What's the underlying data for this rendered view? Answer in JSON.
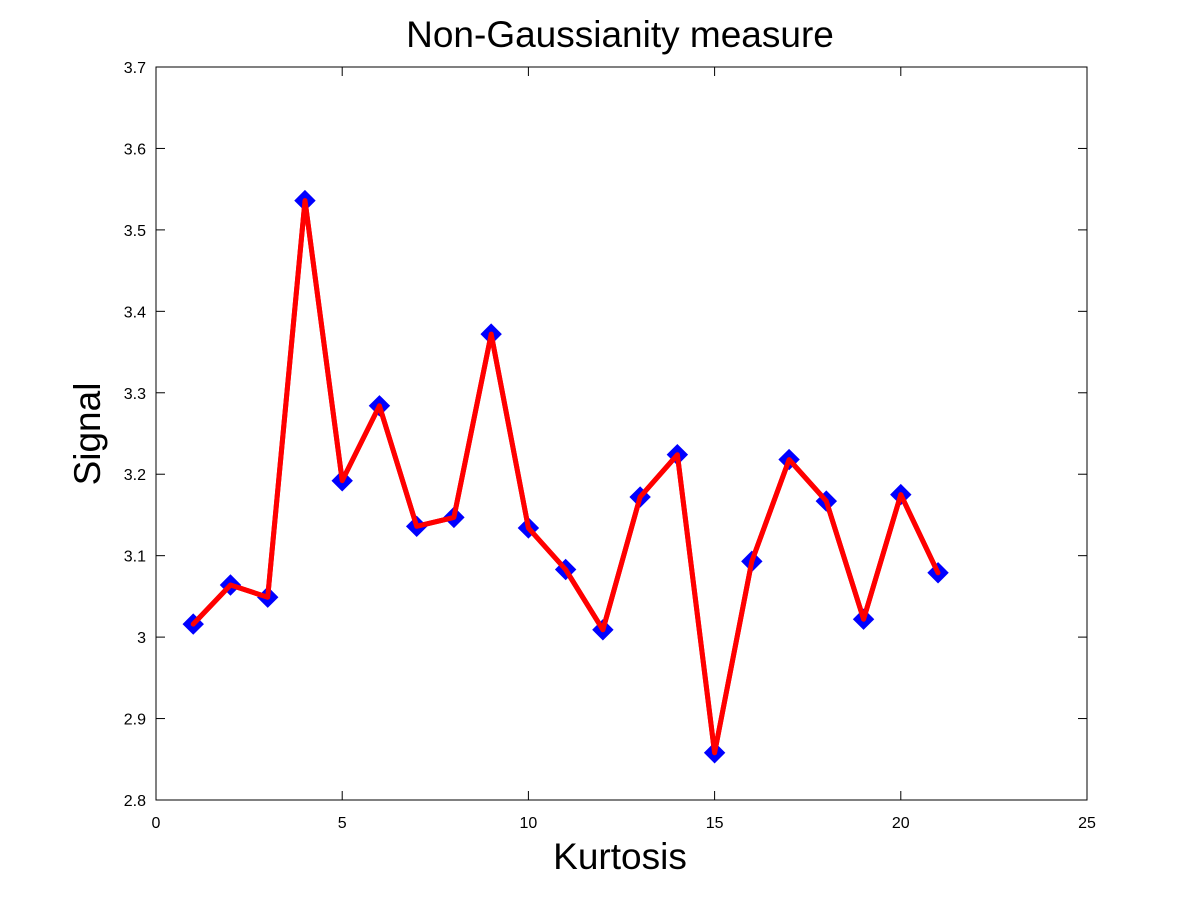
{
  "chart_data": {
    "type": "line",
    "title": "Non-Gaussianity measure",
    "xlabel": "Kurtosis",
    "ylabel": "Signal",
    "xlim": [
      0,
      25
    ],
    "ylim": [
      2.8,
      3.7
    ],
    "xticks": [
      0,
      5,
      10,
      15,
      20,
      25
    ],
    "yticks": [
      2.8,
      2.9,
      3,
      3.1,
      3.2,
      3.3,
      3.4,
      3.5,
      3.6,
      3.7
    ],
    "xtick_labels": [
      "0",
      "5",
      "10",
      "15",
      "20",
      "25"
    ],
    "ytick_labels": [
      "2.8",
      "2.9",
      "3",
      "3.1",
      "3.2",
      "3.3",
      "3.4",
      "3.5",
      "3.6",
      "3.7"
    ],
    "grid": false,
    "legend": "none",
    "line_color": "#ff0000",
    "marker_color": "#0000ff",
    "marker": "diamond",
    "series": [
      {
        "x": [
          1,
          2,
          3,
          4,
          5,
          6,
          7,
          8,
          9,
          10,
          11,
          12,
          13,
          14,
          15,
          16,
          17,
          18,
          19,
          20,
          21
        ],
        "values": [
          3.016,
          3.064,
          3.049,
          3.536,
          3.192,
          3.284,
          3.136,
          3.147,
          3.372,
          3.134,
          3.083,
          3.009,
          3.172,
          3.224,
          2.858,
          3.093,
          3.218,
          3.167,
          3.022,
          3.175,
          3.079
        ]
      }
    ]
  }
}
